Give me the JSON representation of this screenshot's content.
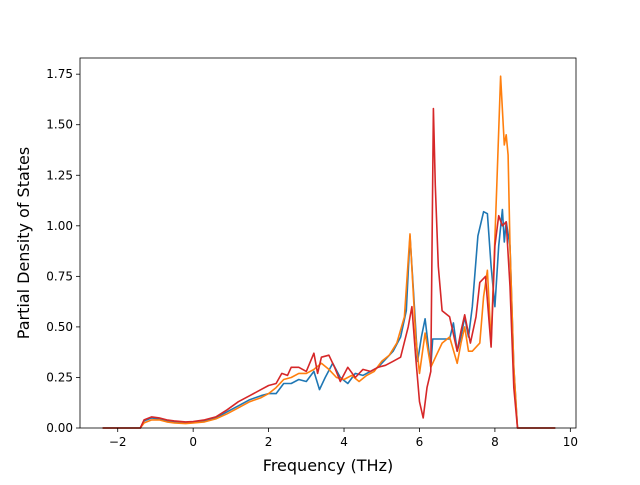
{
  "chart_data": {
    "type": "line",
    "title": "",
    "xlabel": "Frequency (THz)",
    "ylabel": "Partial Density of States",
    "xlim": [
      -3.0,
      10.15
    ],
    "ylim": [
      0.0,
      1.83
    ],
    "xticks": [
      -2,
      0,
      2,
      4,
      6,
      8,
      10
    ],
    "xtick_labels": [
      "−2",
      "0",
      "2",
      "4",
      "6",
      "8",
      "10"
    ],
    "yticks": [
      0.0,
      0.25,
      0.5,
      0.75,
      1.0,
      1.25,
      1.5,
      1.75
    ],
    "ytick_labels": [
      "0.00",
      "0.25",
      "0.50",
      "0.75",
      "1.00",
      "1.25",
      "1.50",
      "1.75"
    ],
    "grid": false,
    "legend": "none",
    "series": [
      {
        "color": "#1f77b4",
        "x": [
          -2.4,
          -1.4,
          -1.3,
          -1.1,
          -0.9,
          -0.7,
          -0.5,
          -0.2,
          0.0,
          0.3,
          0.6,
          0.9,
          1.2,
          1.5,
          1.8,
          2.0,
          2.2,
          2.4,
          2.6,
          2.8,
          3.0,
          3.2,
          3.35,
          3.5,
          3.7,
          3.9,
          4.1,
          4.3,
          4.5,
          4.7,
          4.9,
          5.1,
          5.3,
          5.5,
          5.65,
          5.75,
          5.85,
          5.95,
          6.05,
          6.15,
          6.25,
          6.3,
          6.35,
          6.42,
          6.5,
          6.6,
          6.8,
          6.9,
          7.0,
          7.1,
          7.2,
          7.3,
          7.4,
          7.55,
          7.7,
          7.8,
          7.9,
          8.0,
          8.1,
          8.2,
          8.25,
          8.3,
          8.4,
          8.5,
          8.6,
          8.7,
          9.6
        ],
        "values": [
          0.0,
          0.0,
          0.035,
          0.05,
          0.045,
          0.035,
          0.03,
          0.028,
          0.03,
          0.035,
          0.05,
          0.08,
          0.11,
          0.14,
          0.16,
          0.17,
          0.17,
          0.22,
          0.22,
          0.24,
          0.23,
          0.28,
          0.19,
          0.25,
          0.32,
          0.25,
          0.22,
          0.27,
          0.26,
          0.28,
          0.3,
          0.34,
          0.38,
          0.45,
          0.58,
          0.95,
          0.65,
          0.33,
          0.45,
          0.54,
          0.38,
          0.3,
          0.44,
          0.44,
          0.44,
          0.44,
          0.44,
          0.52,
          0.38,
          0.45,
          0.55,
          0.45,
          0.6,
          0.95,
          1.07,
          1.06,
          0.8,
          0.6,
          0.9,
          1.08,
          0.92,
          1.02,
          0.9,
          0.3,
          0.0,
          0.0,
          0.0
        ]
      },
      {
        "color": "#ff7f0e",
        "x": [
          -2.4,
          -1.4,
          -1.3,
          -1.1,
          -0.9,
          -0.7,
          -0.5,
          -0.2,
          0.0,
          0.3,
          0.6,
          0.9,
          1.2,
          1.5,
          1.8,
          2.0,
          2.2,
          2.4,
          2.6,
          2.8,
          3.0,
          3.2,
          3.4,
          3.6,
          3.8,
          4.0,
          4.2,
          4.4,
          4.6,
          4.8,
          5.0,
          5.2,
          5.4,
          5.6,
          5.75,
          5.9,
          6.0,
          6.15,
          6.3,
          6.45,
          6.6,
          6.8,
          7.0,
          7.1,
          7.2,
          7.3,
          7.4,
          7.6,
          7.7,
          7.8,
          7.9,
          8.05,
          8.15,
          8.25,
          8.3,
          8.35,
          8.4,
          8.5,
          8.6,
          8.7,
          9.6
        ],
        "values": [
          0.0,
          0.0,
          0.025,
          0.04,
          0.04,
          0.03,
          0.025,
          0.022,
          0.025,
          0.03,
          0.045,
          0.07,
          0.1,
          0.13,
          0.15,
          0.17,
          0.2,
          0.24,
          0.25,
          0.27,
          0.27,
          0.29,
          0.32,
          0.29,
          0.25,
          0.24,
          0.26,
          0.23,
          0.26,
          0.28,
          0.33,
          0.36,
          0.42,
          0.55,
          0.96,
          0.45,
          0.27,
          0.47,
          0.3,
          0.36,
          0.42,
          0.45,
          0.32,
          0.42,
          0.5,
          0.38,
          0.38,
          0.42,
          0.65,
          0.78,
          0.42,
          1.2,
          1.74,
          1.4,
          1.45,
          1.35,
          0.9,
          0.3,
          0.0,
          0.0,
          0.0
        ]
      },
      {
        "color": "#d62728",
        "x": [
          -2.4,
          -1.4,
          -1.3,
          -1.1,
          -0.9,
          -0.7,
          -0.5,
          -0.2,
          0.0,
          0.3,
          0.6,
          0.9,
          1.2,
          1.5,
          1.8,
          2.0,
          2.2,
          2.35,
          2.5,
          2.6,
          2.8,
          3.0,
          3.2,
          3.3,
          3.4,
          3.6,
          3.75,
          3.9,
          4.1,
          4.3,
          4.5,
          4.7,
          4.9,
          5.1,
          5.3,
          5.5,
          5.7,
          5.8,
          5.9,
          6.0,
          6.1,
          6.2,
          6.3,
          6.37,
          6.42,
          6.5,
          6.6,
          6.8,
          7.0,
          7.1,
          7.2,
          7.35,
          7.5,
          7.6,
          7.75,
          7.9,
          8.0,
          8.1,
          8.2,
          8.3,
          8.4,
          8.5,
          8.6,
          8.7,
          9.6
        ],
        "values": [
          0.0,
          0.0,
          0.04,
          0.055,
          0.05,
          0.04,
          0.035,
          0.03,
          0.032,
          0.04,
          0.055,
          0.09,
          0.13,
          0.16,
          0.19,
          0.21,
          0.22,
          0.27,
          0.26,
          0.3,
          0.3,
          0.28,
          0.37,
          0.27,
          0.35,
          0.36,
          0.3,
          0.23,
          0.3,
          0.25,
          0.29,
          0.28,
          0.3,
          0.31,
          0.33,
          0.35,
          0.5,
          0.6,
          0.35,
          0.13,
          0.05,
          0.2,
          0.28,
          1.58,
          1.2,
          0.8,
          0.58,
          0.55,
          0.38,
          0.48,
          0.56,
          0.42,
          0.55,
          0.72,
          0.75,
          0.4,
          0.9,
          1.05,
          1.0,
          1.02,
          0.7,
          0.2,
          0.0,
          0.0,
          0.0
        ]
      }
    ]
  }
}
